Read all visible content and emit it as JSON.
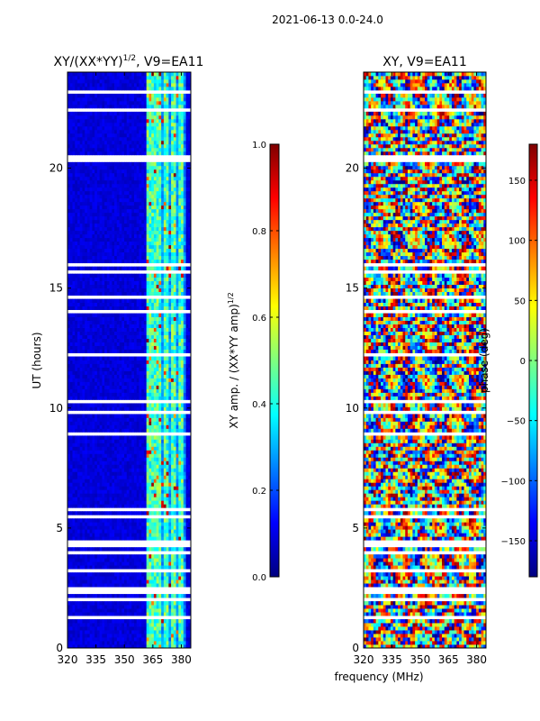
{
  "figure": {
    "suptitle": "2021-06-13 0.0-24.0",
    "xlabel": "frequency (MHz)"
  },
  "chart_data": [
    {
      "type": "heatmap",
      "title_main": "XY/(XX*YY)",
      "title_sup": "1/2",
      "title_suffix": ", V9=EA11",
      "xlabel": "",
      "ylabel": "UT (hours)",
      "xlim": [
        320,
        385
      ],
      "ylim": [
        0,
        24
      ],
      "x_ticks": [
        320,
        335,
        350,
        365,
        380
      ],
      "y_ticks": [
        0,
        5,
        10,
        15,
        20
      ],
      "bright_channels_mhz": [
        363,
        367,
        371,
        375,
        379
      ],
      "colorbar": {
        "label_main": "XY amp. / (XX*YY amp)",
        "label_sup": "1/2",
        "range": [
          0.0,
          1.0
        ],
        "ticks": [
          "0.0",
          "0.2",
          "0.4",
          "0.6",
          "0.8",
          "1.0"
        ]
      }
    },
    {
      "type": "heatmap",
      "title": "XY, V9=EA11",
      "xlabel": "",
      "ylabel": "",
      "xlim": [
        320,
        385
      ],
      "ylim": [
        0,
        24
      ],
      "x_ticks": [
        320,
        335,
        350,
        365,
        380
      ],
      "y_ticks": [
        0,
        5,
        10,
        15,
        20
      ],
      "colorbar": {
        "label": "phase (deg)",
        "range": [
          -180,
          180
        ],
        "ticks": [
          "150",
          "100",
          "50",
          "0",
          "−50",
          "−100",
          "−150"
        ]
      }
    }
  ]
}
